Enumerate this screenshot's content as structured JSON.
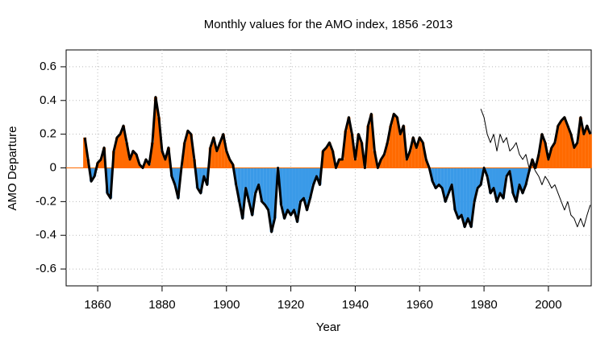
{
  "chart_data": {
    "type": "area-bars",
    "title": "Monthly values for the AMO index, 1856 -2013",
    "xlabel": "Year",
    "ylabel": "AMO Departure",
    "xlim": [
      1850.2,
      2013.3
    ],
    "xticks": [
      1860,
      1880,
      1900,
      1920,
      1940,
      1960,
      1980,
      2000
    ],
    "ylim": [
      -0.7,
      0.7
    ],
    "yticks": [
      -0.6,
      -0.4,
      -0.2,
      0,
      0.2,
      0.4,
      0.6
    ],
    "grid": true,
    "colors": {
      "positive": "#ff6a00",
      "negative": "#3a9ae8"
    },
    "x": [
      1856,
      1857,
      1858,
      1859,
      1860,
      1861,
      1862,
      1863,
      1864,
      1865,
      1866,
      1867,
      1868,
      1869,
      1870,
      1871,
      1872,
      1873,
      1874,
      1875,
      1876,
      1877,
      1878,
      1879,
      1880,
      1881,
      1882,
      1883,
      1884,
      1885,
      1886,
      1887,
      1888,
      1889,
      1890,
      1891,
      1892,
      1893,
      1894,
      1895,
      1896,
      1897,
      1898,
      1899,
      1900,
      1901,
      1902,
      1903,
      1904,
      1905,
      1906,
      1907,
      1908,
      1909,
      1910,
      1911,
      1912,
      1913,
      1914,
      1915,
      1916,
      1917,
      1918,
      1919,
      1920,
      1921,
      1922,
      1923,
      1924,
      1925,
      1926,
      1927,
      1928,
      1929,
      1930,
      1931,
      1932,
      1933,
      1934,
      1935,
      1936,
      1937,
      1938,
      1939,
      1940,
      1941,
      1942,
      1943,
      1944,
      1945,
      1946,
      1947,
      1948,
      1949,
      1950,
      1951,
      1952,
      1953,
      1954,
      1955,
      1956,
      1957,
      1958,
      1959,
      1960,
      1961,
      1962,
      1963,
      1964,
      1965,
      1966,
      1967,
      1968,
      1969,
      1970,
      1971,
      1972,
      1973,
      1974,
      1975,
      1976,
      1977,
      1978,
      1979,
      1980,
      1981,
      1982,
      1983,
      1984,
      1985,
      1986,
      1987,
      1988,
      1989,
      1990,
      1991,
      1992,
      1993,
      1994,
      1995,
      1996,
      1997,
      1998,
      1999,
      2000,
      2001,
      2002,
      2003,
      2004,
      2005,
      2006,
      2007,
      2008,
      2009,
      2010,
      2011,
      2012,
      2013
    ],
    "values": [
      0.18,
      0.05,
      -0.08,
      -0.05,
      0.03,
      0.05,
      0.12,
      -0.15,
      -0.18,
      0.1,
      0.18,
      0.2,
      0.25,
      0.15,
      0.05,
      0.1,
      0.08,
      0.02,
      0.0,
      0.05,
      0.02,
      0.15,
      0.42,
      0.3,
      0.1,
      0.05,
      0.12,
      -0.05,
      -0.1,
      -0.18,
      0.0,
      0.15,
      0.22,
      0.2,
      0.05,
      -0.12,
      -0.15,
      -0.05,
      -0.1,
      0.12,
      0.18,
      0.1,
      0.15,
      0.2,
      0.1,
      0.05,
      0.02,
      -0.1,
      -0.2,
      -0.3,
      -0.12,
      -0.2,
      -0.28,
      -0.15,
      -0.1,
      -0.2,
      -0.22,
      -0.25,
      -0.38,
      -0.3,
      0.0,
      -0.22,
      -0.3,
      -0.25,
      -0.28,
      -0.25,
      -0.32,
      -0.2,
      -0.18,
      -0.25,
      -0.18,
      -0.1,
      -0.05,
      -0.1,
      0.1,
      0.12,
      0.15,
      0.1,
      0.0,
      0.05,
      0.05,
      0.22,
      0.3,
      0.2,
      0.05,
      0.2,
      0.15,
      0.0,
      0.25,
      0.32,
      0.1,
      0.0,
      0.05,
      0.08,
      0.15,
      0.25,
      0.32,
      0.3,
      0.2,
      0.25,
      0.05,
      0.1,
      0.18,
      0.12,
      0.18,
      0.15,
      0.05,
      0.0,
      -0.08,
      -0.12,
      -0.1,
      -0.12,
      -0.2,
      -0.15,
      -0.1,
      -0.25,
      -0.3,
      -0.28,
      -0.35,
      -0.3,
      -0.35,
      -0.2,
      -0.12,
      -0.1,
      0.0,
      -0.05,
      -0.15,
      -0.12,
      -0.2,
      -0.15,
      -0.18,
      -0.05,
      -0.02,
      -0.15,
      -0.2,
      -0.1,
      -0.15,
      -0.1,
      -0.02,
      0.05,
      0.0,
      0.08,
      0.2,
      0.15,
      0.05,
      0.12,
      0.15,
      0.25,
      0.28,
      0.3,
      0.25,
      0.2,
      0.12,
      0.15,
      0.3,
      0.2,
      0.25,
      0.2
    ],
    "overlay": {
      "color": "#000000",
      "x": [
        1979,
        1980,
        1981,
        1982,
        1983,
        1984,
        1985,
        1986,
        1987,
        1988,
        1989,
        1990,
        1991,
        1992,
        1993,
        1994,
        1995,
        1996,
        1997,
        1998,
        1999,
        2000,
        2001,
        2002,
        2003,
        2004,
        2005,
        2006,
        2007,
        2008,
        2009,
        2010,
        2011,
        2012,
        2013
      ],
      "values": [
        0.35,
        0.3,
        0.2,
        0.15,
        0.2,
        0.1,
        0.2,
        0.15,
        0.18,
        0.1,
        0.12,
        0.15,
        0.08,
        0.05,
        0.08,
        0.0,
        0.02,
        -0.02,
        -0.05,
        -0.1,
        -0.05,
        -0.08,
        -0.12,
        -0.1,
        -0.15,
        -0.2,
        -0.25,
        -0.2,
        -0.28,
        -0.3,
        -0.35,
        -0.3,
        -0.35,
        -0.28,
        -0.22
      ]
    }
  }
}
